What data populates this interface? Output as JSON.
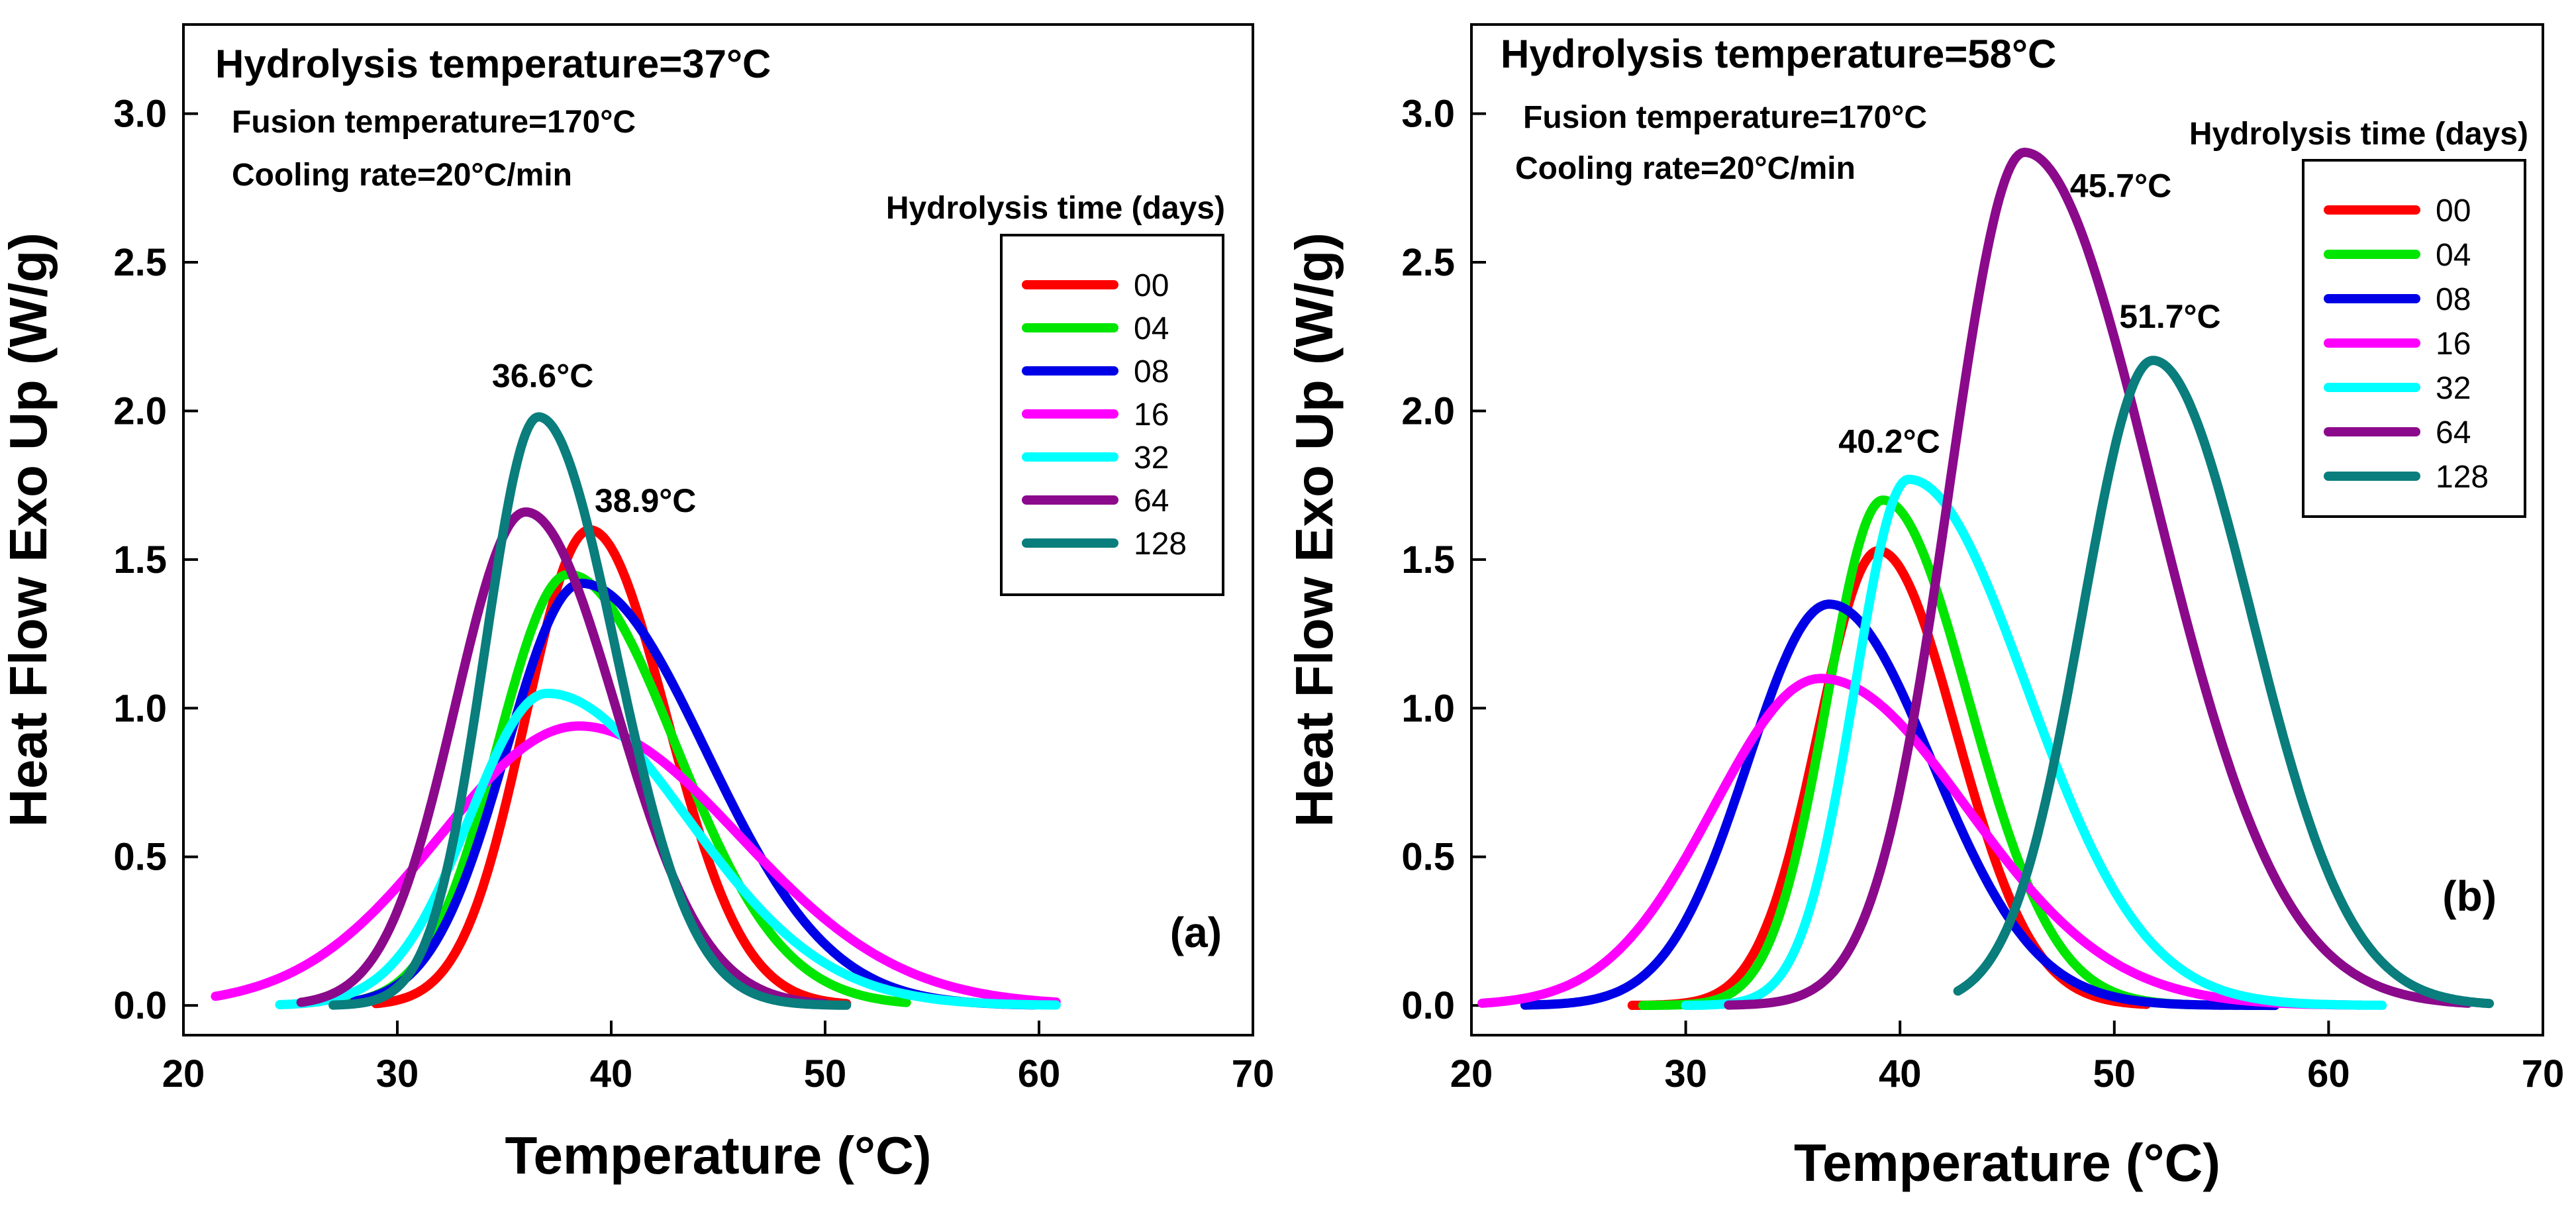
{
  "chart_data": [
    {
      "panel": "a",
      "type": "line",
      "title": "Hydrolysis temperature=37°C",
      "subtitles": [
        "Fusion temperature=170°C",
        "Cooling rate=20°C/min"
      ],
      "panel_label": "(a)",
      "xlabel": "Temperature (°C)",
      "ylabel": "Heat Flow Exo Up (W/g)",
      "xlim": [
        20,
        70
      ],
      "ylim": [
        -0.1,
        3.3
      ],
      "xticks": [
        20,
        30,
        40,
        50,
        60,
        70
      ],
      "yticks": [
        0.0,
        0.5,
        1.0,
        1.5,
        2.0,
        2.5,
        3.0
      ],
      "xtick_labels": [
        "20",
        "30",
        "40",
        "50",
        "60",
        "70"
      ],
      "ytick_labels": [
        "0.0",
        "0.5",
        "1.0",
        "1.5",
        "2.0",
        "2.5",
        "3.0"
      ],
      "legend_title": "Hydrolysis time (days)",
      "legend_position": "right",
      "series": [
        {
          "name": "00",
          "color": "#ff0000",
          "peak_x": 39.0,
          "peak_y": 1.6,
          "width_left": 3.0,
          "width_right": 3.6,
          "start_x": 29.0,
          "end_x": 51.0
        },
        {
          "name": "04",
          "color": "#00e600",
          "peak_x": 38.0,
          "peak_y": 1.45,
          "width_left": 3.3,
          "width_right": 5.0,
          "start_x": 27.5,
          "end_x": 53.8
        },
        {
          "name": "08",
          "color": "#0000e6",
          "peak_x": 38.6,
          "peak_y": 1.42,
          "width_left": 3.5,
          "width_right": 5.8,
          "start_x": 28.0,
          "end_x": 59.8
        },
        {
          "name": "16",
          "color": "#ff00ff",
          "peak_x": 38.5,
          "peak_y": 0.94,
          "width_left": 6.5,
          "width_right": 7.5,
          "start_x": 21.5,
          "end_x": 60.8
        },
        {
          "name": "32",
          "color": "#00ffff",
          "peak_x": 37.0,
          "peak_y": 1.05,
          "width_left": 3.6,
          "width_right": 6.5,
          "start_x": 24.5,
          "end_x": 60.8
        },
        {
          "name": "64",
          "color": "#8b0a8b",
          "peak_x": 36.0,
          "peak_y": 1.66,
          "width_left": 3.3,
          "width_right": 4.2,
          "start_x": 25.5,
          "end_x": 50.0
        },
        {
          "name": "128",
          "color": "#0a7d7d",
          "peak_x": 36.6,
          "peak_y": 1.98,
          "width_left": 2.5,
          "width_right": 3.6,
          "start_x": 27.0,
          "end_x": 51.0
        }
      ],
      "annotations": [
        {
          "text": "36.6°C",
          "x": 36.8,
          "y": 2.08
        },
        {
          "text": "38.9°C",
          "x": 41.6,
          "y": 1.66
        }
      ]
    },
    {
      "panel": "b",
      "type": "line",
      "title": "Hydrolysis temperature=58°C",
      "subtitles": [
        "Fusion temperature=170°C",
        "Cooling rate=20°C/min"
      ],
      "panel_label": "(b)",
      "xlabel": "Temperature (°C)",
      "ylabel": "Heat Flow Exo Up (W/g)",
      "xlim": [
        20,
        70
      ],
      "ylim": [
        -0.1,
        3.3
      ],
      "xticks": [
        20,
        30,
        40,
        50,
        60,
        70
      ],
      "yticks": [
        0.0,
        0.5,
        1.0,
        1.5,
        2.0,
        2.5,
        3.0
      ],
      "xtick_labels": [
        "20",
        "30",
        "40",
        "50",
        "60",
        "70"
      ],
      "ytick_labels": [
        "0.0",
        "0.5",
        "1.0",
        "1.5",
        "2.0",
        "2.5",
        "3.0"
      ],
      "legend_title": "Hydrolysis time (days)",
      "legend_position": "top-right",
      "series": [
        {
          "name": "00",
          "color": "#ff0000",
          "peak_x": 39.0,
          "peak_y": 1.53,
          "width_left": 2.8,
          "width_right": 3.6,
          "start_x": 27.5,
          "end_x": 51.5
        },
        {
          "name": "04",
          "color": "#00e600",
          "peak_x": 39.2,
          "peak_y": 1.7,
          "width_left": 2.6,
          "width_right": 4.0,
          "start_x": 28.0,
          "end_x": 53.5
        },
        {
          "name": "08",
          "color": "#0000e6",
          "peak_x": 36.7,
          "peak_y": 1.35,
          "width_left": 3.8,
          "width_right": 4.8,
          "start_x": 22.5,
          "end_x": 57.5
        },
        {
          "name": "16",
          "color": "#ff00ff",
          "peak_x": 36.3,
          "peak_y": 1.1,
          "width_left": 5.0,
          "width_right": 6.8,
          "start_x": 20.5,
          "end_x": 61.5
        },
        {
          "name": "32",
          "color": "#00ffff",
          "peak_x": 40.4,
          "peak_y": 1.77,
          "width_left": 2.5,
          "width_right": 5.5,
          "start_x": 30.0,
          "end_x": 62.5
        },
        {
          "name": "64",
          "color": "#8b0a8b",
          "peak_x": 45.8,
          "peak_y": 2.87,
          "width_left": 3.5,
          "width_right": 6.0,
          "start_x": 32.0,
          "end_x": 66.5
        },
        {
          "name": "128",
          "color": "#0a7d7d",
          "peak_x": 51.8,
          "peak_y": 2.17,
          "width_left": 3.3,
          "width_right": 4.6,
          "start_x": 42.7,
          "end_x": 67.5
        }
      ],
      "annotations": [
        {
          "text": "40.2°C",
          "x": 39.5,
          "y": 1.86
        },
        {
          "text": "45.7°C",
          "x": 50.3,
          "y": 2.72
        },
        {
          "text": "51.7°C",
          "x": 52.6,
          "y": 2.28
        }
      ]
    }
  ]
}
